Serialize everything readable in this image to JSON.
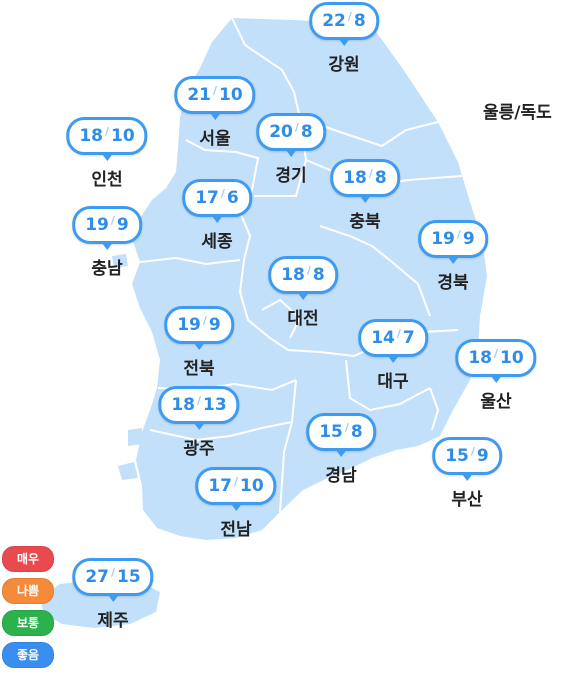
{
  "map": {
    "regions": [
      {
        "id": "gangwon",
        "name": "강원",
        "high": "22",
        "low": "8"
      },
      {
        "id": "seoul",
        "name": "서울",
        "high": "21",
        "low": "10"
      },
      {
        "id": "incheon",
        "name": "인천",
        "high": "18",
        "low": "10"
      },
      {
        "id": "gyeonggi",
        "name": "경기",
        "high": "20",
        "low": "8"
      },
      {
        "id": "chungbuk",
        "name": "충북",
        "high": "18",
        "low": "8"
      },
      {
        "id": "sejong",
        "name": "세종",
        "high": "17",
        "low": "6"
      },
      {
        "id": "chungnam",
        "name": "충남",
        "high": "19",
        "low": "9"
      },
      {
        "id": "gyeongbuk",
        "name": "경북",
        "high": "19",
        "low": "9"
      },
      {
        "id": "daejeon",
        "name": "대전",
        "high": "18",
        "low": "8"
      },
      {
        "id": "jeonbuk",
        "name": "전북",
        "high": "19",
        "low": "9"
      },
      {
        "id": "daegu",
        "name": "대구",
        "high": "14",
        "low": "7"
      },
      {
        "id": "ulsan",
        "name": "울산",
        "high": "18",
        "low": "10"
      },
      {
        "id": "gwangju",
        "name": "광주",
        "high": "18",
        "low": "13"
      },
      {
        "id": "gyeongnam",
        "name": "경남",
        "high": "15",
        "low": "8"
      },
      {
        "id": "busan",
        "name": "부산",
        "high": "15",
        "low": "9"
      },
      {
        "id": "jeonnam",
        "name": "전남",
        "high": "17",
        "low": "10"
      },
      {
        "id": "jeju",
        "name": "제주",
        "high": "27",
        "low": "15"
      }
    ],
    "island_label": "울릉/독도",
    "land_color": "#c3e0fb",
    "border_color": "#ffffff",
    "bubble_border_color": "#3d9bf2",
    "temp_color": "#2f8de8"
  },
  "legend": {
    "items": [
      {
        "label": "매우",
        "color": "#e84a50"
      },
      {
        "label": "나쁨",
        "color": "#f48a3a"
      },
      {
        "label": "보통",
        "color": "#2bb24c"
      },
      {
        "label": "좋음",
        "color": "#3a8ef0"
      }
    ]
  }
}
